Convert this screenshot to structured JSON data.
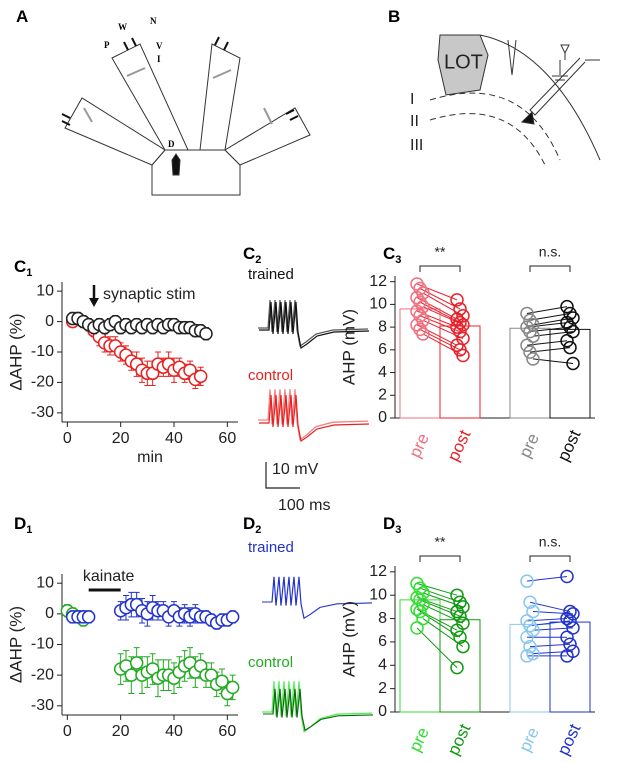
{
  "panel_labels": [
    {
      "letter": "A"
    },
    {
      "letter": "B"
    },
    {
      "letter": "C",
      "sub": "1"
    },
    {
      "letter": "C",
      "sub": "2"
    },
    {
      "letter": "C",
      "sub": "3"
    },
    {
      "letter": "D",
      "sub": "1"
    },
    {
      "letter": "D",
      "sub": "2"
    },
    {
      "letter": "D",
      "sub": "3"
    }
  ],
  "diagram_a": {
    "labels": [
      "W",
      "N",
      "P",
      "V",
      "I",
      "D"
    ]
  },
  "diagram_b": {
    "labels": [
      "LOT",
      "I",
      "II",
      "III"
    ]
  },
  "traces": [
    {
      "title": "trained",
      "color": "#111111"
    },
    {
      "title": "control",
      "color": "#e82020"
    },
    {
      "title": "trained",
      "color": "#2233cc"
    },
    {
      "title": "control",
      "color": "#22aa22"
    }
  ],
  "scale_bar": {
    "y_label": "10 mV",
    "x_label": "100 ms"
  },
  "chart_data": [
    {
      "type": "line",
      "ylabel": "ΔAHP (%)",
      "xlabel": "min",
      "annotation": "synaptic stim",
      "annotation_x": 10,
      "xlim": [
        -2,
        64
      ],
      "ylim": [
        -33,
        13
      ],
      "xticks": [
        0,
        20,
        40,
        60
      ],
      "yticks": [
        10,
        0,
        -10,
        -20,
        -30
      ],
      "series": [
        {
          "color": "#e82020",
          "x": [
            2,
            4,
            6,
            8,
            10,
            12,
            14,
            16,
            18,
            20,
            22,
            24,
            26,
            28,
            30,
            32,
            34,
            36,
            38,
            40,
            42,
            44,
            46,
            48,
            50
          ],
          "values": [
            0,
            1,
            0,
            -1,
            -3,
            -5,
            -7,
            -8,
            -8,
            -10,
            -11,
            -13,
            -14,
            -16,
            -17,
            -17,
            -14,
            -15,
            -14,
            -16,
            -15,
            -17,
            -16,
            -19,
            -18
          ],
          "errors": [
            1,
            1,
            1,
            2,
            2,
            3,
            3,
            3,
            3,
            3,
            3,
            3,
            4,
            4,
            4,
            4,
            4,
            3,
            4,
            4,
            3,
            3,
            3,
            3,
            3
          ]
        },
        {
          "color": "#222222",
          "x": [
            2,
            4,
            6,
            8,
            10,
            12,
            14,
            16,
            18,
            20,
            22,
            24,
            26,
            28,
            30,
            32,
            34,
            36,
            38,
            40,
            42,
            44,
            46,
            48,
            50,
            52
          ],
          "values": [
            1,
            1,
            0,
            -1,
            -2,
            -1,
            -2,
            -1,
            0,
            -2,
            -1,
            -2,
            -1,
            -2,
            -1,
            -2,
            -1,
            -2,
            -1,
            -1,
            -2,
            -2,
            -2,
            -3,
            -3,
            -4
          ],
          "errors": [
            2,
            2,
            2,
            2,
            2,
            2,
            2,
            2,
            2,
            2,
            2,
            2,
            2,
            2,
            2,
            2,
            2,
            2,
            2,
            2,
            2,
            2,
            2,
            2,
            2,
            2
          ]
        }
      ]
    },
    {
      "type": "paired_bar",
      "ylabel": "AHP (mV)",
      "ylim": [
        0,
        12.5
      ],
      "yticks": [
        0,
        2,
        4,
        6,
        8,
        10,
        12
      ],
      "categories": [
        "pre",
        "post",
        "pre",
        "post"
      ],
      "colors": [
        "#f07080",
        "#e8202a",
        "#888888",
        "#111111"
      ],
      "values": [
        9.6,
        8.1,
        7.9,
        7.8
      ],
      "points": [
        [
          11.8,
          11.4,
          11,
          10.6,
          10.2,
          9.8,
          9.4,
          9,
          8.6,
          8.2,
          7.8,
          7.4
        ],
        [
          10.4,
          9.6,
          9,
          8.7,
          8.4,
          8.2,
          8,
          7.6,
          7,
          6.4,
          6,
          5.5
        ],
        [
          9.2,
          8.6,
          8.2,
          8,
          7.6,
          7.2,
          6.4,
          5.8,
          5.2
        ],
        [
          9.8,
          9.2,
          8.8,
          8.4,
          8,
          7.6,
          6.8,
          6.2,
          4.8
        ]
      ],
      "annotations": [
        "**",
        "n.s."
      ]
    },
    {
      "type": "line",
      "ylabel": "ΔAHP (%)",
      "annotation": "kainate",
      "annotation_range": [
        8,
        20
      ],
      "xlim": [
        -2,
        64
      ],
      "ylim": [
        -33,
        13
      ],
      "xticks": [
        0,
        20,
        40,
        60
      ],
      "yticks": [
        10,
        0,
        -10,
        -20,
        -30
      ],
      "series": [
        {
          "color": "#22aa22",
          "x": [
            0,
            2,
            4,
            6,
            20,
            22,
            24,
            26,
            28,
            30,
            32,
            34,
            36,
            38,
            40,
            42,
            44,
            46,
            48,
            50,
            52,
            54,
            56,
            58,
            60,
            62
          ],
          "values": [
            1,
            0,
            -1,
            -2,
            -18,
            -17,
            -20,
            -16,
            -20,
            -19,
            -18,
            -21,
            -20,
            -20,
            -21,
            -19,
            -17,
            -16,
            -19,
            -17,
            -20,
            -20,
            -23,
            -22,
            -26,
            -24
          ],
          "errors": [
            2,
            2,
            2,
            2,
            5,
            5,
            6,
            5,
            6,
            5,
            5,
            6,
            5,
            5,
            5,
            5,
            5,
            5,
            5,
            4,
            4,
            4,
            4,
            4,
            4,
            4
          ]
        },
        {
          "color": "#2233cc",
          "x": [
            2,
            4,
            6,
            8,
            20,
            22,
            24,
            26,
            28,
            30,
            32,
            34,
            36,
            38,
            40,
            42,
            44,
            46,
            48,
            50,
            52,
            54,
            56,
            58,
            60,
            62
          ],
          "values": [
            -1,
            -1,
            -1,
            -1,
            1,
            2,
            3,
            3,
            1,
            0,
            2,
            1,
            1,
            -1,
            1,
            -1,
            0,
            -1,
            0,
            -1,
            -1,
            -2,
            -3,
            -2,
            -2,
            -1
          ],
          "errors": [
            2,
            2,
            2,
            2,
            3,
            4,
            4,
            4,
            4,
            4,
            4,
            3,
            3,
            3,
            3,
            3,
            3,
            3,
            3,
            2,
            2,
            2,
            2,
            2,
            2,
            2
          ]
        }
      ]
    },
    {
      "type": "paired_bar",
      "ylabel": "AHP (mV)",
      "ylim": [
        0,
        12.5
      ],
      "yticks": [
        0,
        2,
        4,
        6,
        8,
        10,
        12
      ],
      "categories": [
        "pre",
        "post",
        "pre",
        "post"
      ],
      "colors": [
        "#33dd33",
        "#119911",
        "#88c8ee",
        "#2233cc"
      ],
      "values": [
        9.6,
        7.9,
        7.5,
        7.7
      ],
      "points": [
        [
          11,
          10.6,
          10.2,
          9.8,
          9.6,
          9.2,
          8.8,
          8.6,
          8,
          7.2
        ],
        [
          10,
          9.4,
          9,
          8.6,
          8.2,
          7.6,
          7,
          6.4,
          5.6,
          3.8
        ],
        [
          11.2,
          9.4,
          8.6,
          7.8,
          7.4,
          7,
          6.4,
          5.6,
          5,
          4.8
        ],
        [
          11.6,
          8.6,
          8.4,
          8,
          7.8,
          7.2,
          6.4,
          5.8,
          5.2,
          4.8
        ]
      ],
      "annotations": [
        "**",
        "n.s."
      ]
    }
  ]
}
